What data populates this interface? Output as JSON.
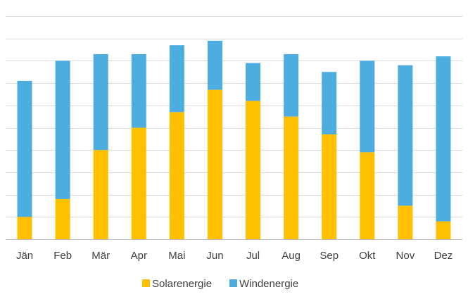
{
  "chart_data": {
    "type": "bar",
    "stacked": true,
    "categories": [
      "Jän",
      "Feb",
      "Mär",
      "Apr",
      "Mai",
      "Jun",
      "Jul",
      "Aug",
      "Sep",
      "Okt",
      "Nov",
      "Dez"
    ],
    "series": [
      {
        "name": "Solarenergie",
        "color": "#FFC000",
        "values": [
          1,
          1.8,
          4,
          5,
          5.7,
          6.7,
          6.2,
          5.5,
          4.7,
          3.9,
          1.5,
          0.8
        ]
      },
      {
        "name": "Windenergie",
        "color": "#4EADDF",
        "values": [
          6.1,
          6.2,
          4.3,
          3.3,
          3,
          2.2,
          1.7,
          2.8,
          2.8,
          4.1,
          6.3,
          7.4
        ]
      }
    ],
    "ylim": [
      0,
      10
    ],
    "y_gridline_step": 1,
    "grid": true,
    "y_tick_labels_shown": false,
    "legend_position": "bottom"
  }
}
